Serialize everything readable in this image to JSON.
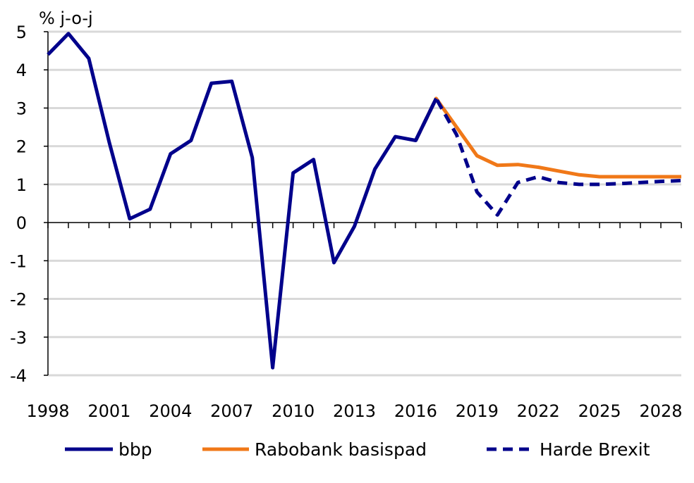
{
  "chart_data": {
    "type": "line",
    "ylabel": "% j-o-j",
    "ylim": [
      -4,
      5
    ],
    "yticks": [
      5,
      4,
      3,
      2,
      1,
      0,
      -1,
      -2,
      -3,
      -4
    ],
    "xlim": [
      1998,
      2029
    ],
    "xticks": [
      1998,
      2001,
      2004,
      2007,
      2010,
      2013,
      2016,
      2019,
      2022,
      2025,
      2028
    ],
    "grid": "horizontal",
    "legend_position": "bottom",
    "series": [
      {
        "name": "bbp",
        "color": "#00008B",
        "style": "solid",
        "x": [
          1998,
          1999,
          2000,
          2001,
          2002,
          2003,
          2004,
          2005,
          2006,
          2007,
          2008,
          2009,
          2010,
          2011,
          2012,
          2013,
          2014,
          2015,
          2016,
          2017
        ],
        "values": [
          4.4,
          4.95,
          4.3,
          2.1,
          0.1,
          0.35,
          1.8,
          2.15,
          3.65,
          3.7,
          1.7,
          -3.8,
          1.3,
          1.65,
          -1.05,
          -0.1,
          1.4,
          2.25,
          2.15,
          3.25
        ]
      },
      {
        "name": "Rabobank basispad",
        "color": "#F07818",
        "style": "solid",
        "x": [
          2016,
          2017,
          2018,
          2019,
          2020,
          2021,
          2022,
          2023,
          2024,
          2025,
          2026,
          2027,
          2028,
          2029
        ],
        "values": [
          2.15,
          3.25,
          2.5,
          1.75,
          1.5,
          1.52,
          1.45,
          1.35,
          1.25,
          1.2,
          1.2,
          1.2,
          1.2,
          1.2
        ]
      },
      {
        "name": "Harde Brexit",
        "color": "#00008B",
        "style": "dashed",
        "x": [
          2016,
          2017,
          2018,
          2019,
          2020,
          2021,
          2022,
          2023,
          2024,
          2025,
          2026,
          2027,
          2028,
          2029
        ],
        "values": [
          2.15,
          3.25,
          2.3,
          0.8,
          0.2,
          1.05,
          1.2,
          1.05,
          1.0,
          1.0,
          1.02,
          1.05,
          1.08,
          1.1
        ]
      }
    ]
  }
}
